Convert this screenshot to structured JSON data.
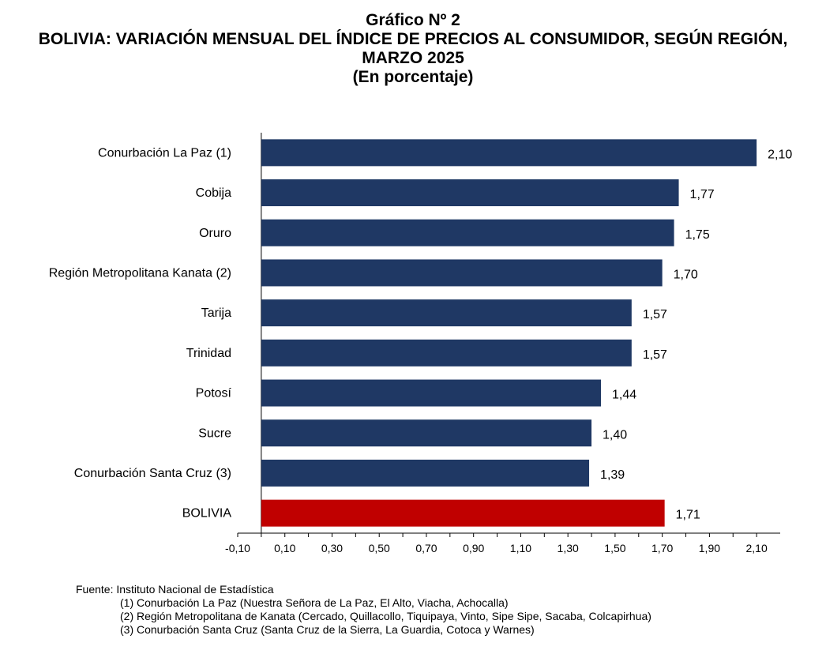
{
  "chart_data": {
    "type": "bar",
    "orientation": "horizontal",
    "title": "Gráfico Nº 2",
    "subtitle": "BOLIVIA: VARIACIÓN MENSUAL DEL ÍNDICE DE PRECIOS AL CONSUMIDOR, SEGÚN REGIÓN, MARZO 2025",
    "unit_label": "(En porcentaje)",
    "categories": [
      "Conurbación La Paz (1)",
      "Cobija",
      "Oruro",
      "Región Metropolitana Kanata (2)",
      "Tarija",
      "Trinidad",
      "Potosí",
      "Sucre",
      "Conurbación Santa Cruz (3)",
      "BOLIVIA"
    ],
    "values": [
      2.1,
      1.77,
      1.75,
      1.7,
      1.57,
      1.57,
      1.44,
      1.4,
      1.39,
      1.71
    ],
    "value_labels": [
      "2,10",
      "1,77",
      "1,75",
      "1,70",
      "1,57",
      "1,57",
      "1,44",
      "1,40",
      "1,39",
      "1,71"
    ],
    "xlim": [
      -0.1,
      2.2
    ],
    "x_ticks": [
      -0.1,
      0.1,
      0.3,
      0.5,
      0.7,
      0.9,
      1.1,
      1.3,
      1.5,
      1.7,
      1.9,
      2.1
    ],
    "x_tick_labels": [
      "-0,10",
      "0,10",
      "0,30",
      "0,50",
      "0,70",
      "0,90",
      "1,10",
      "1,30",
      "1,50",
      "1,70",
      "1,90",
      "2,10"
    ],
    "grid": false,
    "legend": "none",
    "colors": {
      "bar": "#1f3864",
      "highlight": "#c00000"
    },
    "highlight_category": "BOLIVIA"
  },
  "footnotes": {
    "source": "Fuente: Instituto Nacional de Estadística",
    "notes": [
      "(1) Conurbación La Paz (Nuestra Señora de La Paz, El Alto, Viacha, Achocalla)",
      "(2) Región Metropolitana de Kanata (Cercado, Quillacollo, Tiquipaya, Vinto, Sipe Sipe, Sacaba, Colcapirhua)",
      "(3) Conurbación Santa Cruz (Santa Cruz de la Sierra, La Guardia, Cotoca y Warnes)"
    ]
  }
}
